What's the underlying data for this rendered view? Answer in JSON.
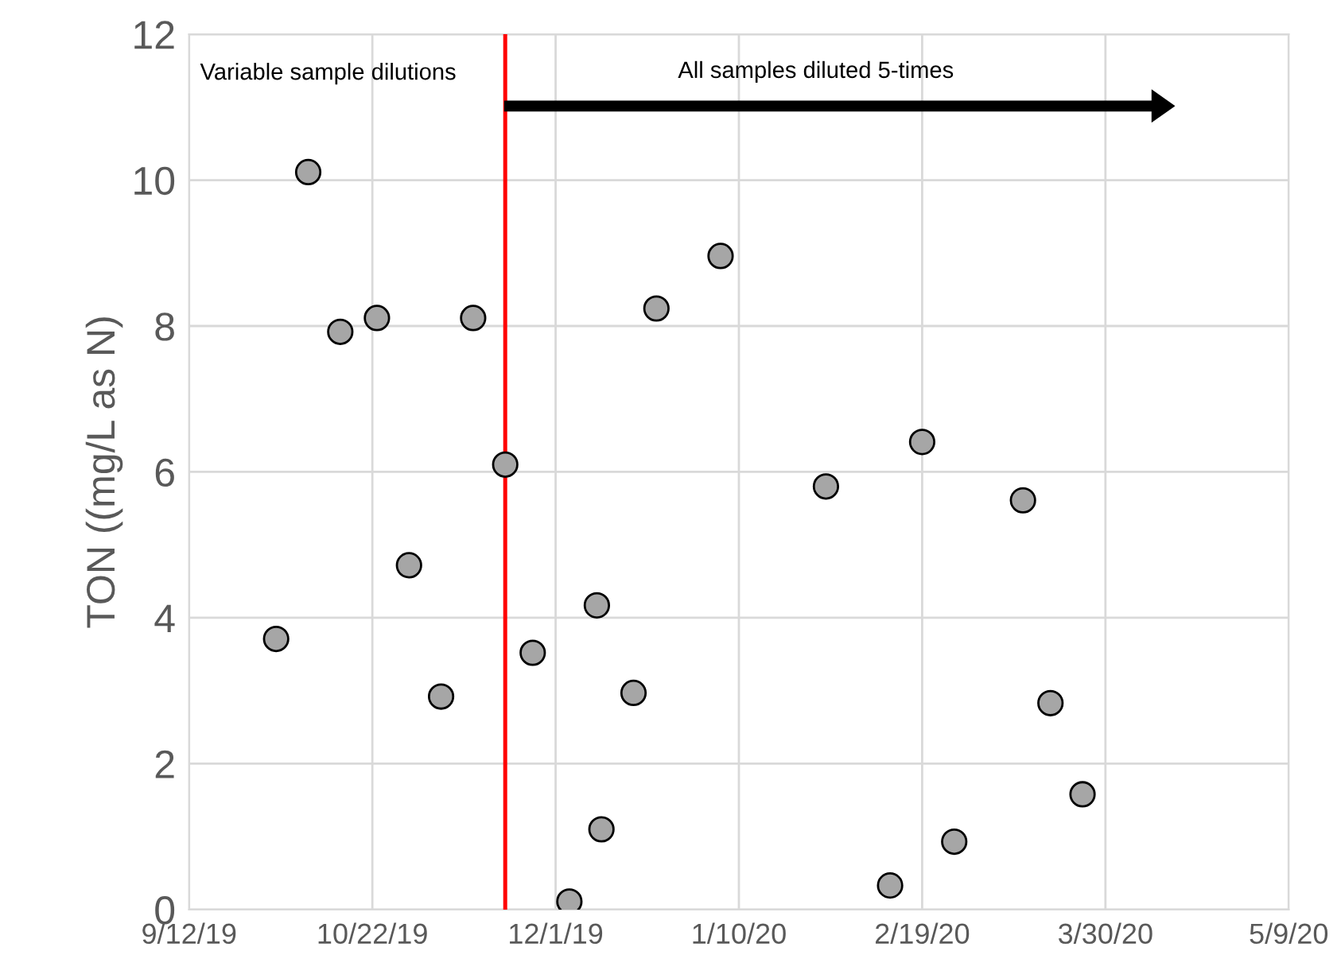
{
  "chart_data": {
    "type": "scatter",
    "ylabel": "TON ((mg/L as N)",
    "x": [
      "2019-10-01",
      "2019-10-08",
      "2019-10-15",
      "2019-10-23",
      "2019-10-30",
      "2019-11-06",
      "2019-11-13",
      "2019-11-20",
      "2019-11-26",
      "2019-12-04",
      "2019-12-10",
      "2019-12-11",
      "2019-12-18",
      "2019-12-23",
      "2020-01-06",
      "2020-01-29",
      "2020-02-12",
      "2020-02-19",
      "2020-02-26",
      "2020-03-12",
      "2020-03-18",
      "2020-03-25"
    ],
    "series": [
      {
        "color": "#a6a6a6",
        "values": [
          3.71,
          10.11,
          7.92,
          8.11,
          4.72,
          2.92,
          8.11,
          6.1,
          3.52,
          0.11,
          4.17,
          1.1,
          2.97,
          8.24,
          8.96,
          5.8,
          0.33,
          6.41,
          0.93,
          5.61,
          2.83,
          1.58
        ]
      }
    ],
    "marker": "circle",
    "grid": true,
    "xlim": [
      "2019-09-12",
      "2020-05-09"
    ],
    "xticks": [
      {
        "value": "2019-09-12",
        "label": "9/12/19"
      },
      {
        "value": "2019-10-22",
        "label": "10/22/19"
      },
      {
        "value": "2019-12-01",
        "label": "12/1/19"
      },
      {
        "value": "2020-01-10",
        "label": "1/10/20"
      },
      {
        "value": "2020-02-19",
        "label": "2/19/20"
      },
      {
        "value": "2020-03-30",
        "label": "3/30/20"
      },
      {
        "value": "2020-05-09",
        "label": "5/9/20"
      }
    ],
    "ylim": [
      0,
      12
    ],
    "yticks": [
      0,
      2,
      4,
      6,
      8,
      10,
      12
    ],
    "ref_lines": [
      {
        "axis": "x",
        "value": "2019-11-20",
        "color": "#ff0000",
        "line_style": "solid"
      }
    ],
    "annotations": [
      "Variable sample dilutions",
      "All samples diluted 5-times"
    ]
  }
}
